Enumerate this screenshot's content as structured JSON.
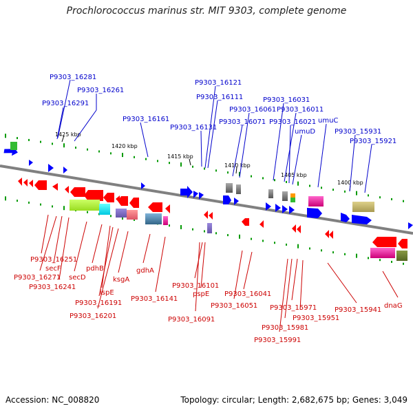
{
  "title": "Prochlorococcus marinus str. MIT 9303, complete genome",
  "footer": {
    "accession_label": "Accession: NC_008820",
    "summary": "Topology: circular; Length: 2,682,675 bp; Genes: 3,049"
  },
  "colors": {
    "forward_feature": "#0000ff",
    "reverse_feature": "#ff0000",
    "forward_label": "#0000cc",
    "reverse_label": "#cc0000",
    "backbone": "#808080",
    "tick": "#009900"
  },
  "kbp_labels": [
    "1425 kbp",
    "1420 kbp",
    "1415 kbp",
    "1410 kbp",
    "1405 kbp",
    "1400 kbp"
  ],
  "forward_labels": [
    "P9303_16281",
    "P9303_16261",
    "P9303_16291",
    "P9303_16161",
    "P9303_16121",
    "P9303_16111",
    "P9303_16131",
    "P9303_16061",
    "P9303_16071",
    "P9303_16031",
    "P9303_16011",
    "P9303_16021",
    "umuD",
    "umuC",
    "P9303_15931",
    "P9303_15921"
  ],
  "reverse_labels": [
    "P9303_16251",
    "secF",
    "P9303_16271",
    "P9303_16241",
    "secD",
    "pdhB",
    "ispE",
    "P9303_16191",
    "P9303_16201",
    "ksgA",
    "gdhA",
    "P9303_16141",
    "P9303_16101",
    "pspE",
    "P9303_16091",
    "P9303_16041",
    "P9303_16051",
    "P9303_15971",
    "P9303_15981",
    "P9303_15991",
    "P9303_15951",
    "P9303_15941",
    "dnaG"
  ]
}
